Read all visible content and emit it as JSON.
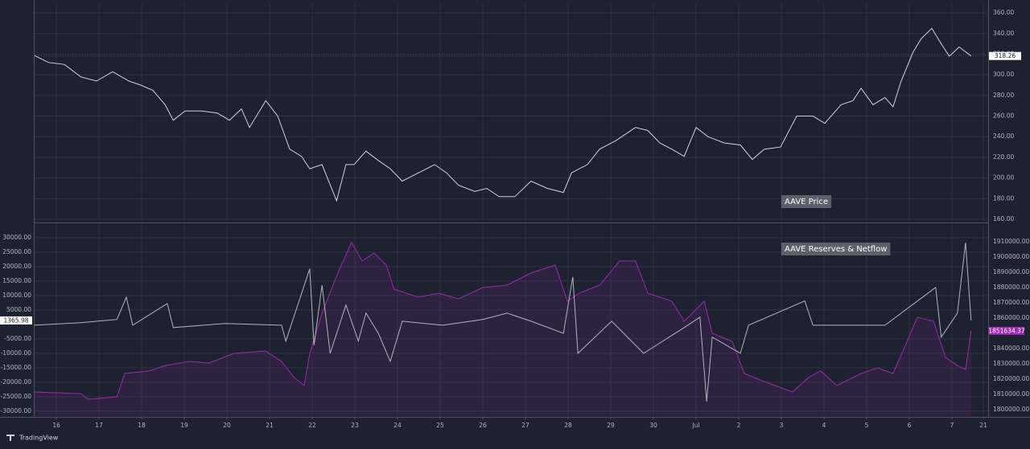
{
  "chart_data": [
    {
      "type": "line",
      "annotation": "AAVE Price",
      "color": "#d1d4dc",
      "grid": true,
      "x": [
        -0.53,
        -0.19,
        0.19,
        0.57,
        0.94,
        1.32,
        1.7,
        1.98,
        2.26,
        2.55,
        2.74,
        3.02,
        3.4,
        3.77,
        4.06,
        4.34,
        4.53,
        4.91,
        5.19,
        5.47,
        5.75,
        5.94,
        6.23,
        6.57,
        6.79,
        6.98,
        7.26,
        7.55,
        7.83,
        8.11,
        8.49,
        8.87,
        9.15,
        9.43,
        9.81,
        10.09,
        10.38,
        10.75,
        11.13,
        11.51,
        11.89,
        12.08,
        12.45,
        12.74,
        13.11,
        13.58,
        13.87,
        14.15,
        14.43,
        14.72,
        15.0,
        15.28,
        15.66,
        16.04,
        16.32,
        16.6,
        16.98,
        17.36,
        17.74,
        18.02,
        18.4,
        18.68,
        18.87,
        19.15,
        19.43,
        19.62,
        19.81,
        20.09,
        20.28,
        20.53,
        20.75,
        20.94,
        21.17,
        21.45
      ],
      "values": [
        319,
        312,
        310,
        298,
        294,
        303,
        294,
        290,
        285,
        271,
        256,
        265,
        265,
        263,
        256,
        267,
        249,
        275,
        260,
        228,
        221,
        209,
        213,
        178,
        213,
        213,
        226,
        217,
        209,
        197,
        205,
        213,
        205,
        193,
        187,
        190,
        182,
        182,
        197,
        190,
        186,
        205,
        213,
        228,
        236,
        249,
        246,
        234,
        228,
        221,
        249,
        240,
        234,
        232,
        218,
        228,
        230,
        260,
        260,
        253,
        271,
        275,
        287,
        271,
        278,
        269,
        294,
        322,
        335,
        345,
        330,
        318,
        327,
        318.26
      ],
      "xlim": [
        -0.53,
        21.85
      ],
      "ylim": [
        157.7,
        368.6
      ],
      "yticks": [
        {
          "value": 160,
          "label": "160.00"
        },
        {
          "value": 180,
          "label": "180.00"
        },
        {
          "value": 200,
          "label": "200.00"
        },
        {
          "value": 220,
          "label": "220.00"
        },
        {
          "value": 240,
          "label": "240.00"
        },
        {
          "value": 260,
          "label": "260.00"
        },
        {
          "value": 280,
          "label": "280.00"
        },
        {
          "value": 300,
          "label": "300.00"
        },
        {
          "value": 320,
          "label": "320.00"
        },
        {
          "value": 340,
          "label": "340.00"
        },
        {
          "value": 360,
          "label": "360.00"
        }
      ]
    },
    {
      "type": "line",
      "annotation": "AAVE Reserves & Netflow",
      "grid": true,
      "series": [
        {
          "color": "#b2b5be",
          "x": [
            -0.53,
            0.57,
            1.42,
            1.64,
            1.79,
            2.6,
            2.74,
            3.96,
            5.28,
            5.38,
            5.94,
            6.04,
            6.23,
            6.42,
            6.79,
            7.08,
            7.26,
            7.55,
            7.83,
            8.11,
            9.06,
            10.0,
            10.57,
            11.13,
            11.89,
            12.11,
            12.23,
            13.02,
            13.77,
            14.72,
            15.09,
            15.25,
            15.38,
            16.04,
            16.23,
            17.55,
            17.74,
            19.43,
            20.62,
            20.75,
            21.13,
            21.32,
            21.45
          ],
          "values": [
            -300,
            600,
            1700,
            9400,
            -300,
            7200,
            -1100,
            300,
            -300,
            -5800,
            19200,
            -7200,
            13600,
            -10000,
            6700,
            -5800,
            3900,
            -3100,
            -12800,
            1100,
            -300,
            1700,
            3900,
            1100,
            -3100,
            16400,
            -10000,
            1100,
            -10000,
            -1100,
            2500,
            -26700,
            -4400,
            -10000,
            -300,
            8100,
            -300,
            -300,
            12800,
            -4400,
            3900,
            28300,
            1365.98
          ]
        },
        {
          "color": "#9c27b0",
          "axis": "y2",
          "area": true,
          "x": [
            -0.53,
            0.57,
            0.75,
            1.42,
            1.6,
            2.17,
            2.55,
            3.11,
            3.58,
            4.15,
            4.91,
            5.28,
            5.57,
            5.81,
            5.94,
            6.23,
            6.6,
            6.92,
            7.17,
            7.45,
            7.74,
            7.92,
            8.49,
            8.96,
            9.43,
            10.0,
            10.57,
            11.13,
            11.7,
            11.98,
            12.26,
            12.74,
            13.21,
            13.58,
            13.87,
            14.43,
            14.72,
            15.19,
            15.38,
            15.85,
            16.13,
            16.6,
            17.26,
            17.64,
            17.92,
            18.3,
            18.87,
            19.25,
            19.62,
            19.91,
            20.19,
            20.57,
            20.85,
            21.13,
            21.32,
            21.45
          ],
          "values": [
            1811600,
            1810500,
            1806800,
            1808400,
            1823700,
            1825300,
            1828900,
            1831600,
            1830500,
            1836800,
            1838400,
            1831600,
            1821100,
            1815800,
            1836800,
            1863200,
            1889500,
            1909500,
            1897400,
            1902600,
            1894700,
            1878900,
            1873700,
            1876300,
            1872600,
            1880000,
            1881600,
            1889500,
            1894700,
            1871100,
            1876300,
            1881600,
            1897400,
            1897400,
            1876300,
            1871100,
            1857900,
            1871100,
            1850000,
            1844700,
            1823700,
            1818400,
            1811600,
            1821100,
            1825300,
            1815800,
            1823700,
            1827400,
            1823700,
            1842100,
            1860500,
            1857900,
            1834200,
            1828900,
            1826300,
            1851634.37
          ]
        }
      ],
      "xlim": [
        -0.53,
        21.85
      ],
      "xticks": [
        {
          "value": 0,
          "label": "16"
        },
        {
          "value": 1,
          "label": "17"
        },
        {
          "value": 2,
          "label": "18"
        },
        {
          "value": 3,
          "label": "19"
        },
        {
          "value": 4,
          "label": "20"
        },
        {
          "value": 5,
          "label": "21"
        },
        {
          "value": 6,
          "label": "22"
        },
        {
          "value": 7,
          "label": "23"
        },
        {
          "value": 8,
          "label": "24"
        },
        {
          "value": 9,
          "label": "25"
        },
        {
          "value": 10,
          "label": "26"
        },
        {
          "value": 11,
          "label": "27"
        },
        {
          "value": 12,
          "label": "28"
        },
        {
          "value": 13,
          "label": "29"
        },
        {
          "value": 14,
          "label": "30"
        },
        {
          "value": 15,
          "label": "Jul"
        },
        {
          "value": 16,
          "label": "2"
        },
        {
          "value": 17,
          "label": "3"
        },
        {
          "value": 18,
          "label": "4"
        },
        {
          "value": 19,
          "label": "5"
        },
        {
          "value": 20,
          "label": "6"
        },
        {
          "value": 21,
          "label": "7"
        },
        {
          "value": 21.74,
          "label": "21"
        }
      ],
      "ylim": [
        -31700,
        34400
      ],
      "yticks": [
        {
          "value": 30000,
          "label": "30000.00"
        },
        {
          "value": 25000,
          "label": "25000.00"
        },
        {
          "value": 20000,
          "label": "20000.00"
        },
        {
          "value": 15000,
          "label": "15000.00"
        },
        {
          "value": 10000,
          "label": "10000.00"
        },
        {
          "value": 5000,
          "label": "5000.00"
        },
        {
          "value": -5000,
          "label": "-5000.00"
        },
        {
          "value": -10000,
          "label": "-10000.00"
        },
        {
          "value": -15000,
          "label": "-15000.00"
        },
        {
          "value": -20000,
          "label": "-20000.00"
        },
        {
          "value": -25000,
          "label": "-25000.00"
        },
        {
          "value": -30000,
          "label": "-30000.00"
        }
      ],
      "y2lim": [
        1795790,
        1921050
      ],
      "y2ticks": [
        {
          "value": 1800000,
          "label": "1800000.00"
        },
        {
          "value": 1810000,
          "label": "1810000.00"
        },
        {
          "value": 1820000,
          "label": "1820000.00"
        },
        {
          "value": 1830000,
          "label": "1830000.00"
        },
        {
          "value": 1840000,
          "label": "1840000.00"
        },
        {
          "value": 1860000,
          "label": "1860000.00"
        },
        {
          "value": 1870000,
          "label": "1870000.00"
        },
        {
          "value": 1880000,
          "label": "1880000.00"
        },
        {
          "value": 1890000,
          "label": "1890000.00"
        },
        {
          "value": 1900000,
          "label": "1900000.00"
        },
        {
          "value": 1910000,
          "label": "1910000.00"
        }
      ]
    }
  ],
  "brand": "TradingView"
}
